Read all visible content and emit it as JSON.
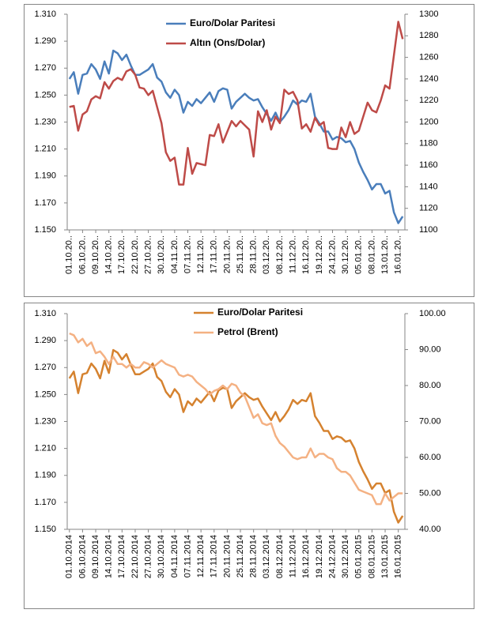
{
  "chart_data": [
    {
      "type": "line",
      "categories": [
        "01.10.20..",
        null,
        null,
        "06.10.20..",
        null,
        null,
        "09.10.20..",
        null,
        null,
        "14.10.20..",
        null,
        null,
        "17.10.20..",
        null,
        null,
        "22.10.20..",
        null,
        null,
        "27.10.20..",
        null,
        null,
        "30.10.20..",
        null,
        null,
        "04.11.20..",
        null,
        null,
        "07.11.20..",
        null,
        null,
        "12.11.20..",
        null,
        null,
        "17.11.20..",
        null,
        null,
        "20.11.20..",
        null,
        null,
        "25.11.20..",
        null,
        null,
        "28.11.20..",
        null,
        null,
        "03.12.20..",
        null,
        null,
        "08.12.20..",
        null,
        null,
        "11.12.20..",
        null,
        null,
        "16.12.20..",
        null,
        null,
        "19.12.20..",
        null,
        null,
        "24.12.20..",
        null,
        null,
        "30.12.20..",
        null,
        null,
        "05.01.20..",
        null,
        null,
        "08.01.20..",
        null,
        null,
        "13.01.20..",
        null,
        null,
        "16.01.20..",
        null
      ],
      "series": [
        {
          "name": "Euro/Dolar Paritesi",
          "color": "#4a7ebb",
          "values": [
            1.262,
            1.267,
            1.251,
            1.265,
            1.266,
            1.273,
            1.269,
            1.262,
            1.275,
            1.266,
            1.283,
            1.281,
            1.276,
            1.28,
            1.272,
            1.265,
            1.265,
            1.267,
            1.269,
            1.273,
            1.263,
            1.26,
            1.252,
            1.248,
            1.254,
            1.25,
            1.237,
            1.245,
            1.242,
            1.247,
            1.244,
            1.248,
            1.252,
            1.245,
            1.253,
            1.255,
            1.254,
            1.24,
            1.245,
            1.248,
            1.251,
            1.248,
            1.246,
            1.247,
            1.241,
            1.236,
            1.231,
            1.237,
            1.23,
            1.234,
            1.239,
            1.246,
            1.243,
            1.246,
            1.245,
            1.251,
            1.234,
            1.229,
            1.223,
            1.223,
            1.217,
            1.219,
            1.218,
            1.215,
            1.216,
            1.21,
            1.2,
            1.193,
            1.187,
            1.18,
            1.184,
            1.184,
            1.177,
            1.179,
            1.163,
            1.155,
            1.16
          ]
        },
        {
          "name": "Altın (Ons/Dolar)",
          "color": "#be4b48",
          "axis": "y2",
          "values": [
            1214,
            1215,
            1192,
            1207,
            1210,
            1221,
            1224,
            1222,
            1237,
            1231,
            1238,
            1241,
            1239,
            1247,
            1249,
            1244,
            1232,
            1231,
            1225,
            1229,
            1214,
            1199,
            1172,
            1164,
            1167,
            1142,
            1142,
            1176,
            1152,
            1162,
            1161,
            1160,
            1188,
            1187,
            1198,
            1181,
            1191,
            1201,
            1196,
            1201,
            1197,
            1193,
            1168,
            1210,
            1200,
            1211,
            1193,
            1205,
            1199,
            1230,
            1226,
            1228,
            1220,
            1194,
            1198,
            1191,
            1204,
            1197,
            1200,
            1176,
            1175,
            1175,
            1195,
            1186,
            1200,
            1189,
            1192,
            1205,
            1218,
            1211,
            1209,
            1220,
            1234,
            1231,
            1262,
            1293,
            1277
          ]
        }
      ],
      "ylim": [
        1.15,
        1.31
      ],
      "yticks": [
        {
          "value": 1.15,
          "label": "1.150"
        },
        {
          "value": 1.17,
          "label": "1.170"
        },
        {
          "value": 1.19,
          "label": "1.190"
        },
        {
          "value": 1.21,
          "label": "1.210"
        },
        {
          "value": 1.23,
          "label": "1.230"
        },
        {
          "value": 1.25,
          "label": "1.250"
        },
        {
          "value": 1.27,
          "label": "1.270"
        },
        {
          "value": 1.29,
          "label": "1.290"
        },
        {
          "value": 1.31,
          "label": "1.310"
        }
      ],
      "y2lim": [
        1100,
        1300
      ],
      "y2ticks": [
        1100,
        1120,
        1140,
        1160,
        1180,
        1200,
        1220,
        1240,
        1260,
        1280,
        1300
      ],
      "legend": "top"
    },
    {
      "type": "line",
      "categories": [
        "01.10.2014",
        null,
        null,
        "06.10.2014",
        null,
        null,
        "09.10.2014",
        null,
        null,
        "14.10.2014",
        null,
        null,
        "17.10.2014",
        null,
        null,
        "22.10.2014",
        null,
        null,
        "27.10.2014",
        null,
        null,
        "30.10.2014",
        null,
        null,
        "04.11.2014",
        null,
        null,
        "07.11.2014",
        null,
        null,
        "12.11.2014",
        null,
        null,
        "17.11.2014",
        null,
        null,
        "20.11.2014",
        null,
        null,
        "25.11.2014",
        null,
        null,
        "28.11.2014",
        null,
        null,
        "03.12.2014",
        null,
        null,
        "08.12.2014",
        null,
        null,
        "11.12.2014",
        null,
        null,
        "16.12.2014",
        null,
        null,
        "19.12.2014",
        null,
        null,
        "24.12.2014",
        null,
        null,
        "30.12.2014",
        null,
        null,
        "05.01.2015",
        null,
        null,
        "08.01.2015",
        null,
        null,
        "13.01.2015",
        null,
        null,
        "16.01.2015",
        null
      ],
      "series": [
        {
          "name": "Euro/Dolar Paritesi",
          "color": "#d5822f",
          "values": [
            1.262,
            1.267,
            1.251,
            1.265,
            1.266,
            1.273,
            1.269,
            1.262,
            1.275,
            1.266,
            1.283,
            1.281,
            1.276,
            1.28,
            1.272,
            1.265,
            1.265,
            1.267,
            1.269,
            1.273,
            1.263,
            1.26,
            1.252,
            1.248,
            1.254,
            1.25,
            1.237,
            1.245,
            1.242,
            1.247,
            1.244,
            1.248,
            1.252,
            1.245,
            1.253,
            1.255,
            1.254,
            1.24,
            1.245,
            1.248,
            1.251,
            1.248,
            1.246,
            1.247,
            1.241,
            1.236,
            1.231,
            1.237,
            1.23,
            1.234,
            1.239,
            1.246,
            1.243,
            1.246,
            1.245,
            1.251,
            1.234,
            1.229,
            1.223,
            1.223,
            1.217,
            1.219,
            1.218,
            1.215,
            1.216,
            1.21,
            1.2,
            1.193,
            1.187,
            1.18,
            1.184,
            1.184,
            1.177,
            1.179,
            1.163,
            1.155,
            1.16
          ]
        },
        {
          "name": "Petrol (Brent)",
          "color": "#f4b183",
          "axis": "y2",
          "values": [
            94.5,
            94,
            92,
            93,
            91,
            92,
            89,
            89.5,
            88,
            86,
            88,
            86,
            86,
            85,
            86,
            85,
            85,
            86.5,
            86,
            85,
            86,
            87,
            86,
            85.5,
            85,
            83,
            82.5,
            83,
            82.5,
            81,
            80,
            79,
            77.5,
            78.5,
            79,
            80,
            79,
            80.5,
            80,
            78,
            77,
            74,
            71,
            72,
            69.5,
            69,
            69.5,
            66,
            64,
            63,
            61.5,
            60,
            59.5,
            60,
            60,
            62.5,
            60,
            61,
            61,
            60,
            59.5,
            57,
            56,
            56,
            55,
            53,
            51,
            50.5,
            50,
            49.5,
            47,
            47,
            50,
            48,
            49,
            50,
            50
          ]
        }
      ],
      "ylim": [
        1.15,
        1.31
      ],
      "yticks": [
        {
          "value": 1.15,
          "label": "1.150"
        },
        {
          "value": 1.17,
          "label": "1.170"
        },
        {
          "value": 1.19,
          "label": "1.190"
        },
        {
          "value": 1.21,
          "label": "1.210"
        },
        {
          "value": 1.23,
          "label": "1.230"
        },
        {
          "value": 1.25,
          "label": "1.250"
        },
        {
          "value": 1.27,
          "label": "1.270"
        },
        {
          "value": 1.29,
          "label": "1.290"
        },
        {
          "value": 1.31,
          "label": "1.310"
        }
      ],
      "y2lim": [
        40,
        100
      ],
      "y2ticks": [
        {
          "value": 40,
          "label": "40.00"
        },
        {
          "value": 50,
          "label": "50.00"
        },
        {
          "value": 60,
          "label": "60.00"
        },
        {
          "value": 70,
          "label": "70.00"
        },
        {
          "value": 80,
          "label": "80.00"
        },
        {
          "value": 90,
          "label": "90.00"
        },
        {
          "value": 100,
          "label": "100.00"
        }
      ],
      "legend": "top"
    }
  ]
}
